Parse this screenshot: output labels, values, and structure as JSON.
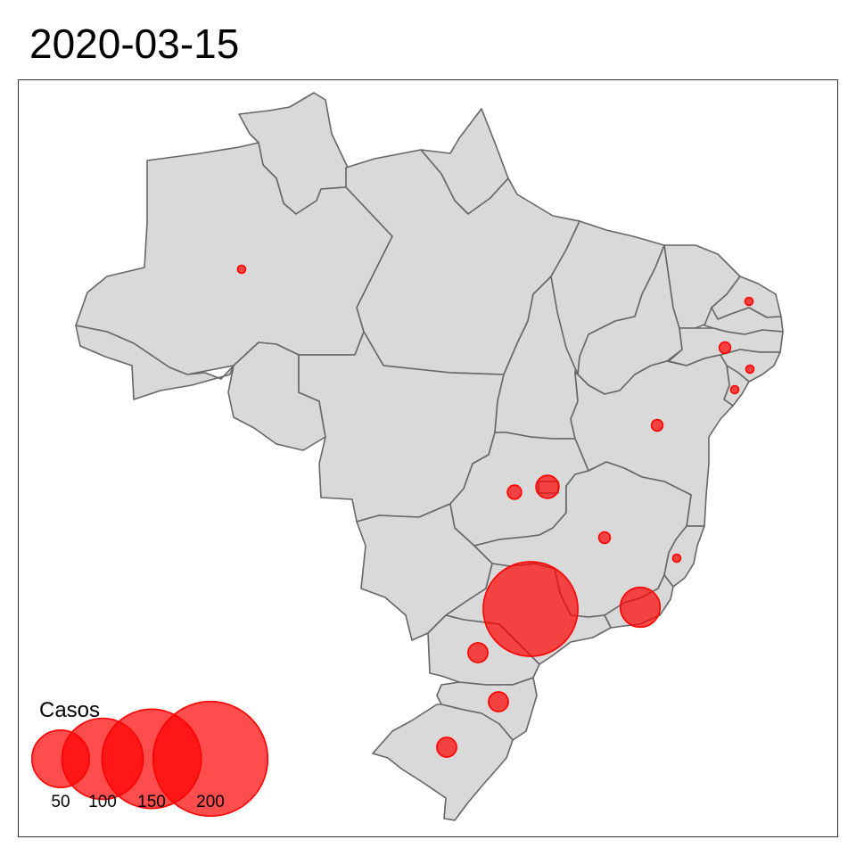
{
  "title": "2020-03-15",
  "colors": {
    "bubble": "#ff0000",
    "land": "#d9d9d9",
    "border": "#666666"
  },
  "legend": {
    "title": "Casos",
    "entries": [
      {
        "label": "50",
        "value": 50
      },
      {
        "label": "100",
        "value": 100
      },
      {
        "label": "150",
        "value": 150
      },
      {
        "label": "200",
        "value": 200
      }
    ]
  },
  "chart_data": {
    "type": "bubble-map",
    "date": "2020-03-15",
    "size_legend": "Casos",
    "cases": [
      {
        "state": "AM",
        "value": 1
      },
      {
        "state": "RN",
        "value": 1
      },
      {
        "state": "PE",
        "value": 2
      },
      {
        "state": "AL",
        "value": 1
      },
      {
        "state": "SE",
        "value": 1
      },
      {
        "state": "BA",
        "value": 2
      },
      {
        "state": "GO",
        "value": 3
      },
      {
        "state": "DF",
        "value": 8
      },
      {
        "state": "MG",
        "value": 2
      },
      {
        "state": "ES",
        "value": 1
      },
      {
        "state": "SP",
        "value": 136
      },
      {
        "state": "RJ",
        "value": 24
      },
      {
        "state": "PR",
        "value": 6
      },
      {
        "state": "SC",
        "value": 6
      },
      {
        "state": "RS",
        "value": 6
      }
    ]
  }
}
